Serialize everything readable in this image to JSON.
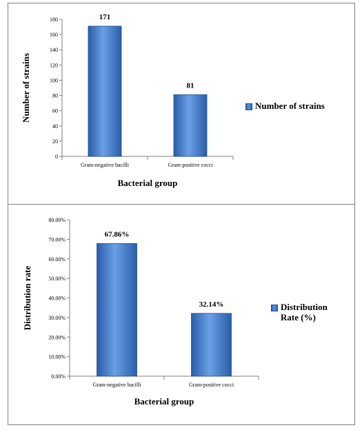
{
  "chart_data": [
    {
      "type": "bar",
      "categories": [
        "Gram-negative bacilli",
        "Gram-positive cocci"
      ],
      "series": [
        {
          "name": "Number of strains",
          "values": [
            171,
            81
          ]
        }
      ],
      "data_labels": [
        "171",
        "81"
      ],
      "xlabel": "Bacterial group",
      "ylabel": "Number of strains",
      "ylim": [
        0,
        180
      ],
      "yticks": [
        0,
        20,
        40,
        60,
        80,
        100,
        120,
        140,
        160,
        180
      ],
      "ytick_labels": [
        "0",
        "20",
        "40",
        "60",
        "80",
        "100",
        "120",
        "140",
        "160",
        "180"
      ],
      "legend": "right",
      "grid": false,
      "bar_color": "#3a70c0"
    },
    {
      "type": "bar",
      "categories": [
        "Gram-negative bacilli",
        "Gram-positive cocci"
      ],
      "series": [
        {
          "name": "Distribution Rate (%)",
          "values": [
            67.86,
            32.14
          ]
        }
      ],
      "data_labels": [
        "67.86%",
        "32.14%"
      ],
      "xlabel": "Bacterial group",
      "ylabel": "Distribution rate",
      "ylim": [
        0,
        80
      ],
      "yticks": [
        0,
        10,
        20,
        30,
        40,
        50,
        60,
        70,
        80
      ],
      "ytick_labels": [
        "0.00%",
        "10.00%",
        "20.00%",
        "30.00%",
        "40.00%",
        "50.00%",
        "60.00%",
        "70.00%",
        "80.00%"
      ],
      "legend": "right",
      "grid": false,
      "bar_color": "#3a70c0"
    }
  ]
}
